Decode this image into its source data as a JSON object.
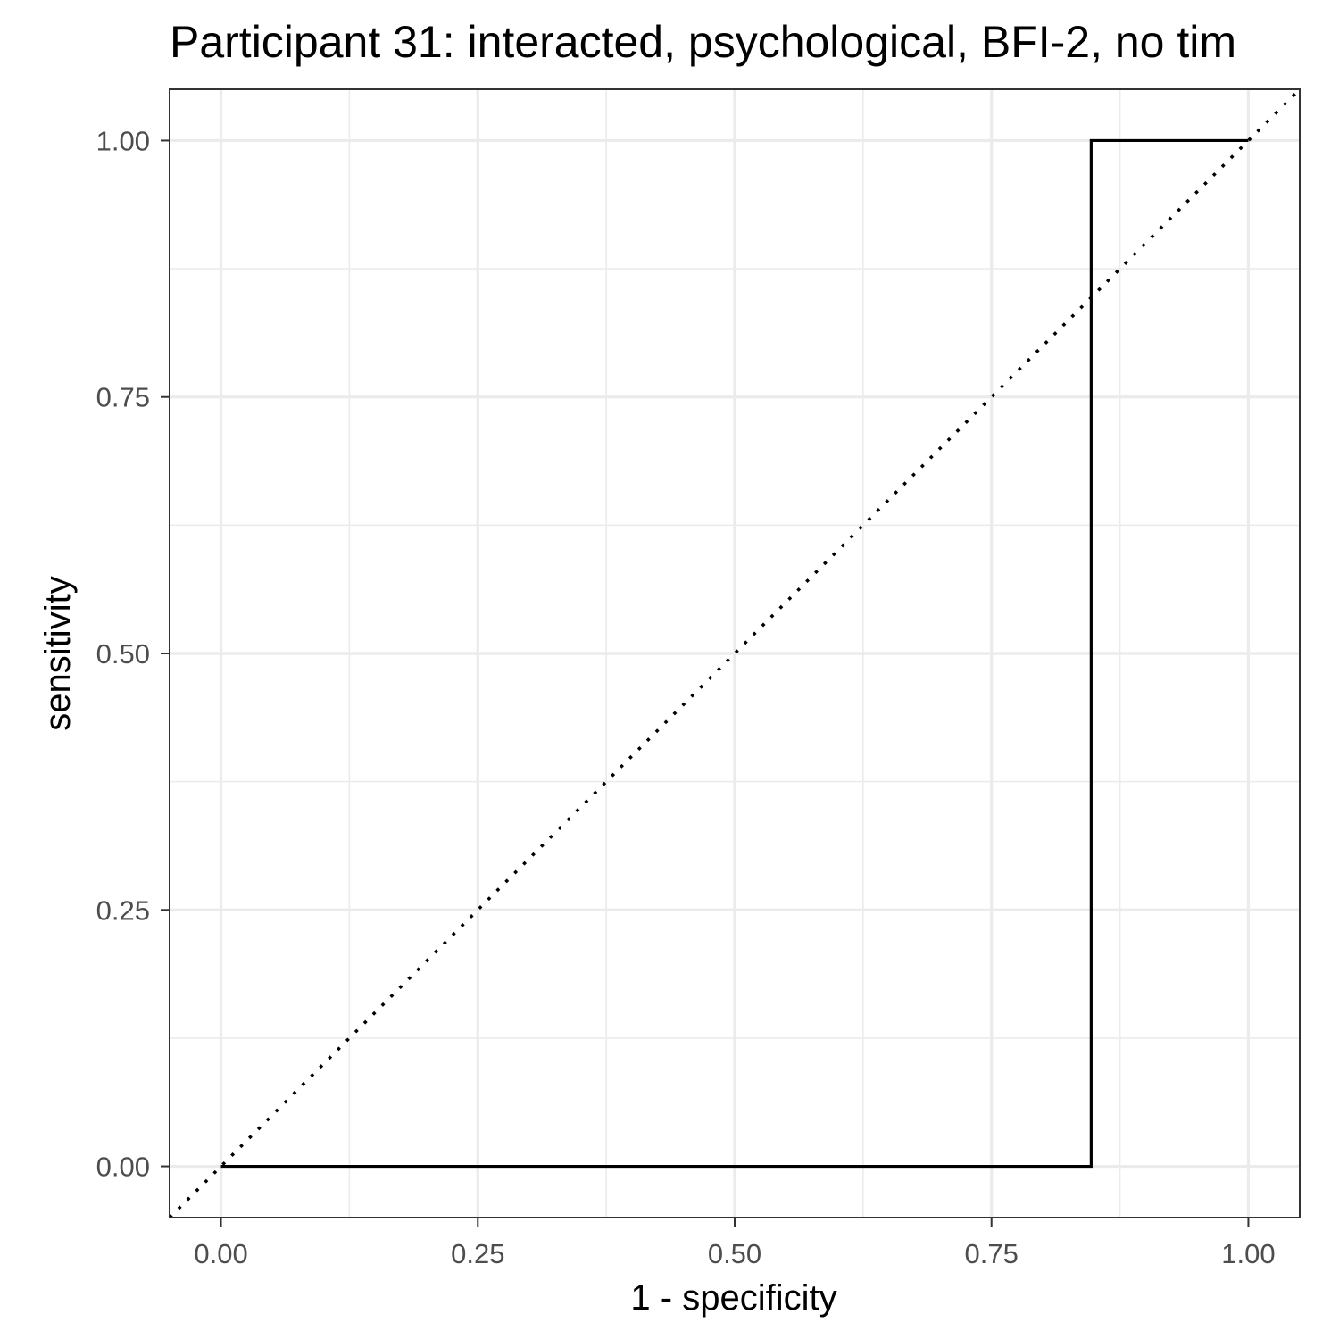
{
  "chart_data": {
    "type": "line",
    "title": "Participant 31: interacted, psychological, BFI-2, no tim",
    "xlabel": "1 - specificity",
    "ylabel": "sensitivity",
    "xlim": [
      -0.05,
      1.05
    ],
    "ylim": [
      -0.05,
      1.05
    ],
    "x_ticks": [
      "0.00",
      "0.25",
      "0.50",
      "0.75",
      "1.00"
    ],
    "y_ticks": [
      "0.00",
      "0.25",
      "0.50",
      "0.75",
      "1.00"
    ],
    "grid": true,
    "series": [
      {
        "style": "solid",
        "x": [
          0,
          0.847,
          0.847,
          1.0
        ],
        "y": [
          0,
          0,
          1,
          1
        ]
      },
      {
        "style": "dotted",
        "x": [
          -0.05,
          1.05
        ],
        "y": [
          -0.05,
          1.05
        ]
      }
    ],
    "colors": {
      "roc_line": "#000000",
      "reference_line": "#000000",
      "grid": "#ebebeb",
      "panel_border": "#333333",
      "tick_text": "#4d4d4d"
    }
  }
}
